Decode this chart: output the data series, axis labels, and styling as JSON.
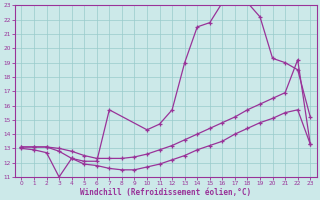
{
  "xlabel": "Windchill (Refroidissement éolien,°C)",
  "xlim": [
    -0.5,
    23.5
  ],
  "ylim": [
    11,
    23
  ],
  "xticks": [
    0,
    1,
    2,
    3,
    4,
    5,
    6,
    7,
    8,
    9,
    10,
    11,
    12,
    13,
    14,
    15,
    16,
    17,
    18,
    19,
    20,
    21,
    22,
    23
  ],
  "yticks": [
    11,
    12,
    13,
    14,
    15,
    16,
    17,
    18,
    19,
    20,
    21,
    22,
    23
  ],
  "background_color": "#cce9e9",
  "grid_color": "#99cccc",
  "line_color": "#993399",
  "curve1_x": [
    0,
    1,
    2,
    3,
    4,
    5,
    6,
    7,
    10,
    11,
    12,
    13,
    14,
    15,
    16,
    17,
    18,
    19,
    20,
    21,
    22,
    23
  ],
  "curve1_y": [
    13,
    12.9,
    12.7,
    11.0,
    12.3,
    12.1,
    12.1,
    15.7,
    14.3,
    14.7,
    15.7,
    19.0,
    21.5,
    21.8,
    23.2,
    23.3,
    23.2,
    22.2,
    19.3,
    19.0,
    18.5,
    15.2
  ],
  "curve2_x": [
    0,
    1,
    2,
    3,
    4,
    5,
    6,
    7,
    8,
    9,
    10,
    11,
    12,
    13,
    14,
    15,
    16,
    17,
    18,
    19,
    20,
    21,
    22,
    23
  ],
  "curve2_y": [
    13.1,
    13.1,
    13.1,
    13.0,
    12.8,
    12.5,
    12.3,
    12.3,
    12.3,
    12.4,
    12.6,
    12.9,
    13.2,
    13.6,
    14.0,
    14.4,
    14.8,
    15.2,
    15.7,
    16.1,
    16.5,
    16.9,
    19.2,
    13.3
  ],
  "curve3_x": [
    0,
    1,
    2,
    3,
    4,
    5,
    6,
    7,
    8,
    9,
    10,
    11,
    12,
    13,
    14,
    15,
    16,
    17,
    18,
    19,
    20,
    21,
    22,
    23
  ],
  "curve3_y": [
    13.1,
    13.1,
    13.1,
    12.8,
    12.3,
    11.9,
    11.8,
    11.6,
    11.5,
    11.5,
    11.7,
    11.9,
    12.2,
    12.5,
    12.9,
    13.2,
    13.5,
    14.0,
    14.4,
    14.8,
    15.1,
    15.5,
    15.7,
    13.3
  ]
}
